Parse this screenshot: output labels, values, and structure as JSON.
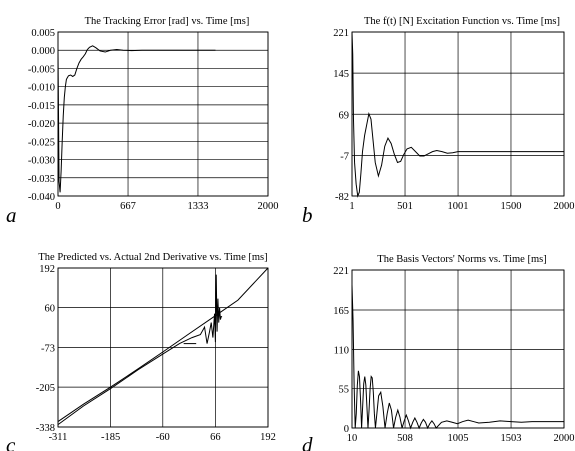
{
  "figure": {
    "panel_letters": [
      "a",
      "b",
      "c",
      "d"
    ]
  },
  "chart_data": [
    {
      "type": "line",
      "title": "The Tracking Error [rad] vs. Time [ms]",
      "xlabel": "",
      "ylabel": "",
      "xlim": [
        0,
        2000
      ],
      "ylim": [
        -0.04,
        0.005
      ],
      "x_ticks": [
        0,
        667,
        1333,
        2000
      ],
      "x_tick_labels": [
        "0",
        "667",
        "1333",
        "2000"
      ],
      "y_ticks": [
        0.005,
        0.0,
        -0.005,
        -0.01,
        -0.015,
        -0.02,
        -0.025,
        -0.03,
        -0.035,
        -0.04
      ],
      "y_tick_labels": [
        "0.005",
        "0.000",
        "-0.005",
        "-0.010",
        "-0.015",
        "-0.020",
        "-0.025",
        "-0.030",
        "-0.035",
        "-0.040"
      ],
      "grid": true,
      "series": [
        {
          "x": [
            0,
            10,
            20,
            30,
            40,
            50,
            60,
            70,
            80,
            90,
            100,
            120,
            140,
            160,
            180,
            200,
            220,
            240,
            260,
            280,
            300,
            330,
            360,
            400,
            450,
            500,
            560,
            620,
            700,
            800,
            900,
            1000,
            1100,
            1200,
            1300,
            1400,
            1500
          ],
          "y": [
            0,
            -0.036,
            -0.039,
            -0.033,
            -0.025,
            -0.018,
            -0.013,
            -0.01,
            -0.008,
            -0.0075,
            -0.007,
            -0.0068,
            -0.0072,
            -0.0068,
            -0.005,
            -0.0035,
            -0.0025,
            -0.0018,
            -0.001,
            0.0002,
            0.0008,
            0.0012,
            0.0007,
            -0.0002,
            -0.0005,
            0.0,
            0.0002,
            0.0,
            -0.0001,
            0.0,
            0.0,
            0.0,
            0.0,
            0.0,
            0.0,
            0.0,
            0.0
          ]
        }
      ]
    },
    {
      "type": "line",
      "title": "The f(t) [N] Excitation Function vs. Time [ms]",
      "xlabel": "",
      "ylabel": "",
      "xlim": [
        1,
        2000
      ],
      "ylim": [
        -82,
        221
      ],
      "x_ticks": [
        1,
        501,
        1001,
        1500,
        2000
      ],
      "x_tick_labels": [
        "1",
        "501",
        "1001",
        "1500",
        "2000"
      ],
      "y_ticks": [
        221,
        145,
        69,
        -7,
        -82
      ],
      "y_tick_labels": [
        "221",
        "145",
        "69",
        "-7",
        "-82"
      ],
      "grid": true,
      "series": [
        {
          "x": [
            1,
            8,
            15,
            25,
            40,
            55,
            70,
            85,
            100,
            120,
            140,
            160,
            180,
            200,
            220,
            250,
            280,
            310,
            340,
            370,
            400,
            430,
            460,
            490,
            520,
            560,
            600,
            640,
            680,
            720,
            760,
            800,
            850,
            900,
            950,
            1000,
            1100,
            1200,
            1290,
            1300,
            1400,
            1500,
            1600,
            1700,
            1800,
            1900,
            2000
          ],
          "y": [
            221,
            180,
            60,
            -20,
            -60,
            -82,
            -75,
            -40,
            0,
            30,
            50,
            70,
            60,
            20,
            -20,
            -45,
            -25,
            10,
            25,
            15,
            -5,
            -20,
            -18,
            -5,
            5,
            8,
            0,
            -8,
            -8,
            -4,
            0,
            2,
            0,
            -3,
            -2,
            0,
            0,
            0,
            0,
            0,
            0,
            0,
            0,
            0,
            0,
            0,
            0
          ]
        }
      ]
    },
    {
      "type": "line",
      "title": "The Predicted vs. Actual 2nd Derivative vs. Time [ms]",
      "xlabel": "",
      "ylabel": "",
      "xlim": [
        -311,
        192
      ],
      "ylim": [
        -338,
        192
      ],
      "x_ticks": [
        -311,
        -185,
        -60,
        66,
        192
      ],
      "x_tick_labels": [
        "-311",
        "-185",
        "-60",
        "66",
        "192"
      ],
      "y_ticks": [
        192,
        60,
        -73,
        -205,
        -338
      ],
      "y_tick_labels": [
        "192",
        "60",
        "-73",
        "-205",
        "-338"
      ],
      "grid": true,
      "series": [
        {
          "x": [
            -311,
            -250,
            -185,
            -120,
            -60,
            0,
            66,
            120,
            192
          ],
          "y": [
            -320,
            -262,
            -205,
            -145,
            -88,
            -30,
            33,
            85,
            192
          ]
        },
        {
          "x": [
            -311,
            -250,
            -185,
            -120,
            -60,
            -20,
            10,
            30,
            40,
            46,
            52,
            56,
            60,
            64,
            66,
            68,
            70,
            72,
            74,
            76,
            78,
            80,
            82
          ],
          "y": [
            -330,
            -268,
            -210,
            -148,
            -95,
            -60,
            -40,
            -30,
            -5,
            -60,
            -20,
            10,
            -40,
            40,
            -55,
            170,
            -20,
            90,
            10,
            60,
            20,
            30,
            30
          ]
        },
        {
          "x": [
            -10,
            20
          ],
          "y": [
            -60,
            -60
          ]
        }
      ]
    },
    {
      "type": "line",
      "title": "The Basis Vectors' Norms vs. Time [ms]",
      "xlabel": "",
      "ylabel": "",
      "xlim": [
        10,
        2000
      ],
      "ylim": [
        0,
        221
      ],
      "x_ticks": [
        10,
        508,
        1005,
        1503,
        2000
      ],
      "x_tick_labels": [
        "10",
        "508",
        "1005",
        "1503",
        "2000"
      ],
      "y_ticks": [
        221,
        165,
        110,
        55,
        0
      ],
      "y_tick_labels": [
        "221",
        "165",
        "110",
        "55",
        "0"
      ],
      "grid": true,
      "series": [
        {
          "x": [
            10,
            20,
            30,
            40,
            50,
            60,
            70,
            80,
            90,
            100,
            110,
            120,
            130,
            140,
            150,
            160,
            170,
            180,
            190,
            200,
            210,
            220,
            230,
            240,
            260,
            280,
            300,
            320,
            340,
            360,
            380,
            400,
            420,
            440,
            460,
            480,
            500,
            520,
            540,
            560,
            580,
            600,
            620,
            640,
            660,
            680,
            700,
            720,
            740,
            760,
            780,
            800,
            850,
            900,
            950,
            1000,
            1050,
            1100,
            1150,
            1200,
            1300,
            1400,
            1500,
            1600,
            1700,
            1800,
            1900,
            2000
          ],
          "y": [
            200,
            150,
            60,
            0,
            20,
            60,
            80,
            72,
            40,
            0,
            30,
            62,
            72,
            60,
            30,
            0,
            25,
            55,
            72,
            70,
            50,
            20,
            0,
            15,
            45,
            50,
            30,
            0,
            20,
            35,
            25,
            0,
            15,
            25,
            15,
            0,
            10,
            18,
            10,
            0,
            8,
            14,
            8,
            0,
            7,
            12,
            8,
            0,
            6,
            10,
            6,
            0,
            8,
            10,
            8,
            6,
            9,
            11,
            9,
            7,
            8,
            10,
            9,
            8,
            9,
            9,
            9,
            9
          ]
        }
      ]
    }
  ]
}
